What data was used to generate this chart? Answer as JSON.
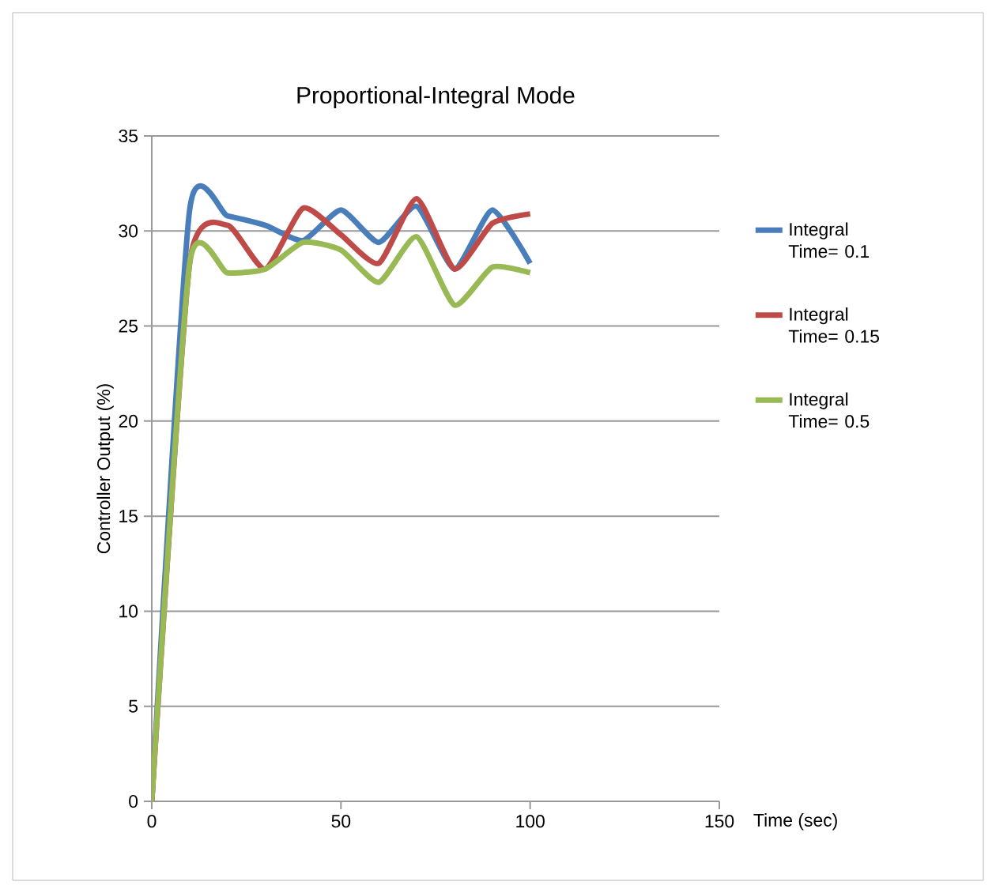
{
  "chart_data": {
    "type": "line",
    "title": "Proportional-Integral Mode",
    "xlabel": "Time (sec)",
    "ylabel": "Controller  Output (%)",
    "x": [
      0,
      10,
      20,
      30,
      40,
      50,
      60,
      70,
      80,
      90,
      100
    ],
    "series": [
      {
        "name": "Integral Time= 0.1",
        "color": "#4a7ebb",
        "values": [
          0,
          31.1,
          30.8,
          30.3,
          29.5,
          31.1,
          29.4,
          31.3,
          28.0,
          31.1,
          28.3
        ]
      },
      {
        "name": "Integral Time= 0.15",
        "color": "#be4b48",
        "values": [
          0,
          28.3,
          30.3,
          28.0,
          31.2,
          29.8,
          28.3,
          31.7,
          28.0,
          30.4,
          30.9
        ]
      },
      {
        "name": "Integral Time= 0.5",
        "color": "#98b954",
        "values": [
          0,
          28.3,
          27.8,
          28.0,
          29.4,
          29.0,
          27.3,
          29.7,
          26.1,
          28.1,
          27.8
        ]
      }
    ],
    "xlim": [
      0,
      150
    ],
    "xticks": [
      0,
      50,
      100,
      150
    ],
    "ylim": [
      0,
      35
    ],
    "yticks": [
      0,
      5,
      10,
      15,
      20,
      25,
      30,
      35
    ],
    "grid": "y",
    "legend": "right",
    "marker": "none",
    "line_style": "solid"
  }
}
